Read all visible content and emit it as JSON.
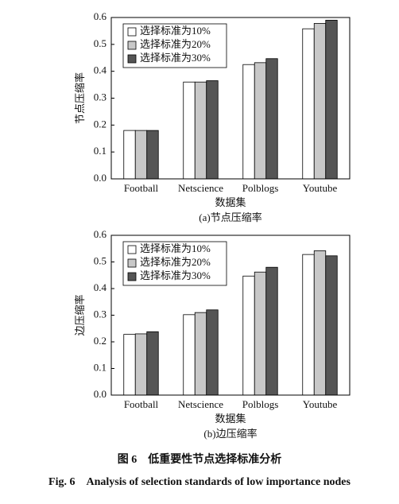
{
  "chart_data": [
    {
      "type": "bar",
      "subtitle": "(a)节点压缩率",
      "x_label": "数据集",
      "y_label": "节点压缩率",
      "categories": [
        "Football",
        "Netscience",
        "Polblogs",
        "Youtube"
      ],
      "series": [
        {
          "name": "选择标准为10%",
          "color": "#ffffff",
          "values": [
            0.18,
            0.36,
            0.425,
            0.558
          ]
        },
        {
          "name": "选择标准为20%",
          "color": "#c8c8c8",
          "values": [
            0.18,
            0.36,
            0.432,
            0.578
          ]
        },
        {
          "name": "选择标准为30%",
          "color": "#555555",
          "values": [
            0.18,
            0.365,
            0.447,
            0.59
          ]
        }
      ],
      "ylim": [
        0,
        0.6
      ],
      "yticks": [
        {
          "value": 0,
          "label": "0.0"
        },
        0.1,
        0.2,
        0.3,
        0.4,
        0.5,
        0.6
      ],
      "legend": "upper left"
    },
    {
      "type": "bar",
      "subtitle": "(b)边压缩率",
      "x_label": "数据集",
      "y_label": "边压缩率",
      "categories": [
        "Football",
        "Netscience",
        "Polblogs",
        "Youtube"
      ],
      "series": [
        {
          "name": "选择标准为10%",
          "color": "#ffffff",
          "values": [
            0.228,
            0.302,
            0.447,
            0.528
          ]
        },
        {
          "name": "选择标准为20%",
          "color": "#c8c8c8",
          "values": [
            0.23,
            0.31,
            0.462,
            0.542
          ]
        },
        {
          "name": "选择标准为30%",
          "color": "#555555",
          "values": [
            0.238,
            0.32,
            0.48,
            0.523
          ]
        }
      ],
      "ylim": [
        0,
        0.6
      ],
      "yticks": [
        {
          "value": 0,
          "label": "0.0"
        },
        0.1,
        0.2,
        0.3,
        0.4,
        0.5,
        0.6
      ],
      "legend": "upper left"
    }
  ],
  "figure_caption_cn": "图 6　低重要性节点选择标准分析",
  "figure_caption_en": "Fig. 6　Analysis of selection standards of low importance nodes"
}
